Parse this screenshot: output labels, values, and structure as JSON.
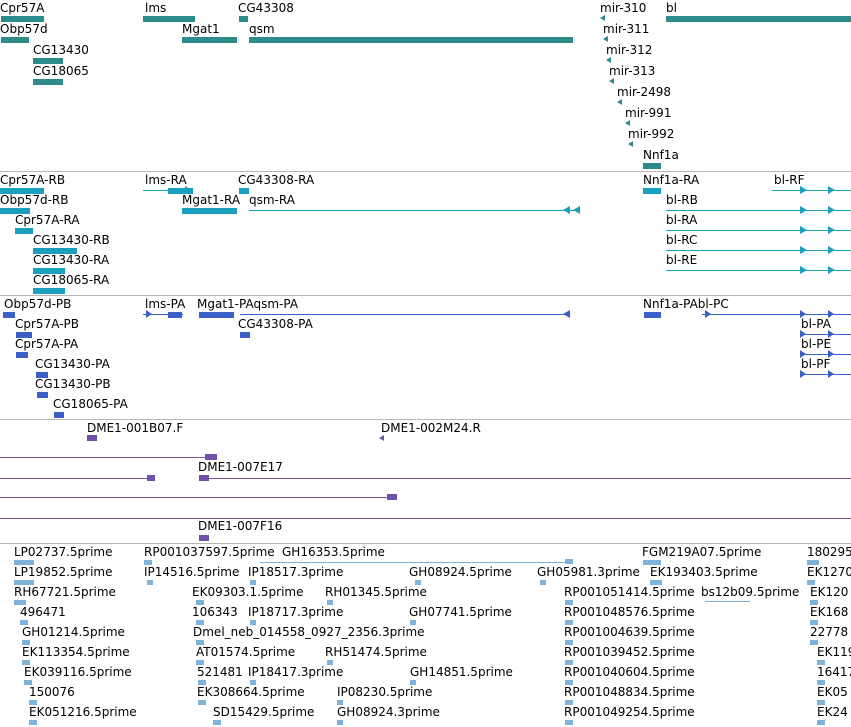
{
  "colors": {
    "gene": "#2e8b8b",
    "transcript": "#1aa0bf",
    "protein": "#3a60c8",
    "clone": "#7050a8",
    "est": "#7fb2d8",
    "separator": "#b8b8b8"
  },
  "tracks": {
    "genes": {
      "labels": {
        "cpr57a": "Cpr57A",
        "obp57d": "Obp57d",
        "cg13430": "CG13430",
        "cg18065": "CG18065",
        "lms": "lms",
        "mgat1": "Mgat1",
        "cg43308": "CG43308",
        "qsm": "qsm",
        "mir310": "mir-310",
        "mir311": "mir-311",
        "mir312": "mir-312",
        "mir313": "mir-313",
        "mir2498": "mir-2498",
        "mir991": "mir-991",
        "mir992": "mir-992",
        "nnf1a": "Nnf1a",
        "bl": "bl"
      }
    },
    "transcripts": {
      "labels": {
        "cpr57a_rb": "Cpr57A-RB",
        "obp57d_rb": "Obp57d-RB",
        "cpr57a_ra": "Cpr57A-RA",
        "cg13430_rb": "CG13430-RB",
        "cg13430_ra": "CG13430-RA",
        "cg18065_ra": "CG18065-RA",
        "lms_ra": "lms-RA",
        "mgat1_ra": "Mgat1-RA",
        "cg43308_ra": "CG43308-RA",
        "qsm_ra": "qsm-RA",
        "nnf1a_ra": "Nnf1a-RA",
        "bl_rf": "bl-RF",
        "bl_rb": "bl-RB",
        "bl_ra": "bl-RA",
        "bl_rc": "bl-RC",
        "bl_re": "bl-RE"
      }
    },
    "proteins": {
      "labels": {
        "obp57d_pb": "Obp57d-PB",
        "cpr57a_pb": "Cpr57A-PB",
        "cpr57a_pa": "Cpr57A-PA",
        "cg13430_pa": "CG13430-PA",
        "cg13430_pb": "CG13430-PB",
        "cg18065_pa": "CG18065-PA",
        "lms_pa": "lms-PA",
        "mgat1_pa_qsm_pa": "Mgat1-PAqsm-PA",
        "cg43308_pa": "CG43308-PA",
        "nnf1a_pa_bl_pc": "Nnf1a-PAbl-PC",
        "bl_pa": "bl-PA",
        "bl_pe": "bl-PE",
        "bl_pf": "bl-PF"
      }
    },
    "clones": {
      "labels": {
        "c1": "DME1-001B07.F",
        "c2": "DME1-002M24.R",
        "c3": "DME1-007E17",
        "c4": "DME1-007F16"
      }
    },
    "ests": {
      "labels": {
        "e01": "LP02737.5prime",
        "e02": "RP001037597.5prime",
        "e03": "GH16353.5prime",
        "e04": "FGM219A07.5prime",
        "e05": "180295",
        "e06": "LP19852.5prime",
        "e07": "IP14516.5prime",
        "e08": "IP18517.3prime",
        "e09": "GH08924.5prime",
        "e10": "GH05981.3prime",
        "e11": "EK193403.5prime",
        "e12": "EK1270",
        "e13": "RH67721.5prime",
        "e14": "EK09303.1.5prime",
        "e15": "RH01345.5prime",
        "e16": "RP001051414.5prime",
        "e17": "bs12b09.5prime",
        "e18": "EK120",
        "e19": "496471",
        "e20": "106343",
        "e21": "IP18717.3prime",
        "e22": "GH07741.5prime",
        "e23": "RP001048576.5prime",
        "e24": "EK168",
        "e25": "GH01214.5prime",
        "e26": "Dmel_neb_014558_0927_2356.3prime",
        "e27": "RP001004639.5prime",
        "e28": "22778",
        "e29": "EK113354.5prime",
        "e30": "AT01574.5prime",
        "e31": "RH51474.5prime",
        "e32": "RP001039452.5prime",
        "e33": "EK119",
        "e34": "EK039116.5prime",
        "e35": "521481",
        "e36": "IP18417.3prime",
        "e37": "GH14851.5prime",
        "e38": "RP001040604.5prime",
        "e39": "16417",
        "e40": "150076",
        "e41": "EK308664.5prime",
        "e42": "IP08230.5prime",
        "e43": "RP001048834.5prime",
        "e44": "EK05",
        "e45": "EK051216.5prime",
        "e46": "SD15429.5prime",
        "e47": "GH08924.3prime",
        "e48": "RP001049254.5prime",
        "e49": "EK24"
      }
    }
  }
}
